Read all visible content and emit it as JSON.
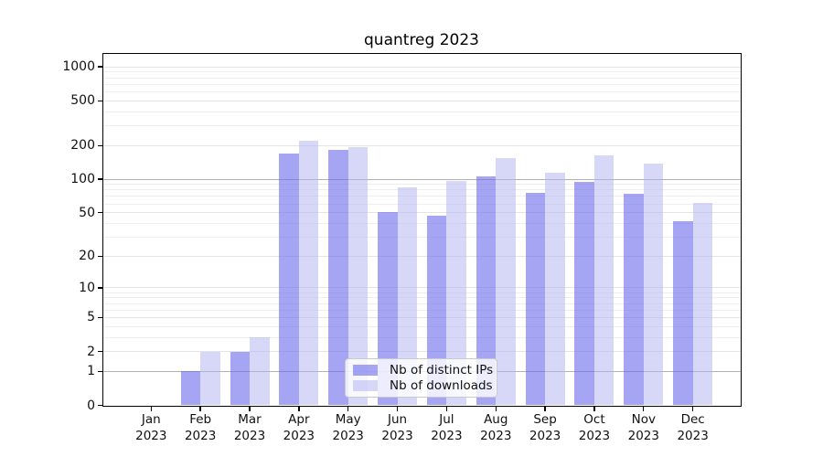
{
  "title": "quantreg 2023",
  "chart_data": {
    "type": "bar",
    "title": "quantreg 2023",
    "categories": [
      "Jan 2023",
      "Feb 2023",
      "Mar 2023",
      "Apr 2023",
      "May 2023",
      "Jun 2023",
      "Jul 2023",
      "Aug 2023",
      "Sep 2023",
      "Oct 2023",
      "Nov 2023",
      "Dec 2023"
    ],
    "x_tick_months": [
      "Jan",
      "Feb",
      "Mar",
      "Apr",
      "May",
      "Jun",
      "Jul",
      "Aug",
      "Sep",
      "Oct",
      "Nov",
      "Dec"
    ],
    "x_tick_year": "2023",
    "series": [
      {
        "name": "Nb of distinct IPs",
        "values": [
          0,
          1,
          2,
          170,
          183,
          51,
          47,
          106,
          76,
          95,
          74,
          42
        ]
      },
      {
        "name": "Nb of downloads",
        "values": [
          0,
          2,
          3,
          221,
          192,
          84,
          97,
          154,
          115,
          163,
          137,
          61
        ]
      }
    ],
    "xlabel": "",
    "ylabel": "",
    "yscale": "log1p",
    "ylim": [
      0,
      1290
    ],
    "yticks": [
      0,
      1,
      2,
      5,
      10,
      20,
      50,
      100,
      200,
      500,
      1000
    ],
    "minor_yticks": [
      3,
      4,
      6,
      7,
      8,
      9,
      30,
      40,
      60,
      70,
      80,
      90,
      300,
      400,
      600,
      700,
      800,
      900
    ],
    "emphasized_gridlines": [
      1,
      100
    ],
    "grid": true,
    "legend_position": "lower center"
  },
  "colors": {
    "bar_ips": "rgba(105,105,235,0.6)",
    "bar_downloads": "rgba(175,175,240,0.5)",
    "grid_minor": "#eeeeee",
    "grid_major": "#e4e4e4",
    "grid_emphasized": "#b2b2b2",
    "spine": "#000000"
  }
}
